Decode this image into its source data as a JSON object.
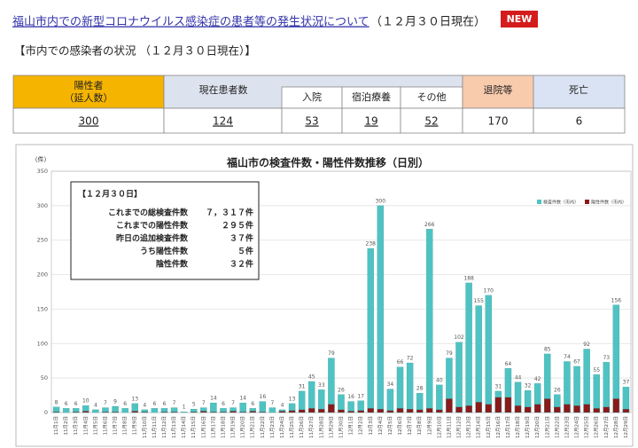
{
  "header": {
    "title": "福山市内での新型コロナウイルス感染症の患者等の発生状況について",
    "date": "（１２月３０日現在）",
    "badge": "NEW"
  },
  "subtitle": "【市内での感染者の状況 （１２月３０日現在）】",
  "table": {
    "headers": [
      "陽性者",
      "現在患者数",
      "退院等",
      "死亡"
    ],
    "positive_note": "（延人数）",
    "subheaders": [
      "入院",
      "宿泊療養",
      "その他"
    ],
    "values": [
      300,
      124,
      53,
      19,
      52,
      170,
      6
    ]
  },
  "chart_data": {
    "type": "bar",
    "title": "福山市の検査件数・陽性件数推移（日別）",
    "y_label": "（件）",
    "categories": [
      "11月1日",
      "11月2日",
      "11月3日",
      "11月4日",
      "11月5日",
      "11月6日",
      "11月7日",
      "11月8日",
      "11月9日",
      "11月10日",
      "11月11日",
      "11月12日",
      "11月13日",
      "11月14日",
      "11月15日",
      "11月16日",
      "11月17日",
      "11月18日",
      "11月19日",
      "11月20日",
      "11月21日",
      "11月22日",
      "11月23日",
      "11月24日",
      "11月25日",
      "11月26日",
      "11月27日",
      "11月28日",
      "11月29日",
      "11月30日",
      "12月1日",
      "12月2日",
      "12月3日",
      "12月4日",
      "12月5日",
      "12月6日",
      "12月7日",
      "12月8日",
      "12月9日",
      "12月10日",
      "12月11日",
      "12月12日",
      "12月13日",
      "12月14日",
      "12月15日",
      "12月16日",
      "12月17日",
      "12月18日",
      "12月19日",
      "12月20日",
      "12月21日",
      "12月22日",
      "12月23日",
      "12月24日",
      "12月25日",
      "12月26日",
      "12月27日",
      "12月28日",
      "12月29日"
    ],
    "series": [
      {
        "name": "検査件数（市内）",
        "color": "#4fc3c3",
        "values": [
          8,
          6,
          6,
          10,
          4,
          7,
          9,
          6,
          13,
          4,
          6,
          6,
          7,
          1,
          5,
          7,
          14,
          6,
          7,
          14,
          6,
          16,
          7,
          4,
          13,
          31,
          45,
          33,
          79,
          26,
          16,
          17,
          238,
          300,
          34,
          66,
          72,
          28,
          266,
          40,
          79,
          102,
          188,
          155,
          170,
          31,
          64,
          44,
          32,
          42,
          85,
          26,
          74,
          67,
          92,
          55,
          73,
          156,
          37
        ]
      },
      {
        "name": "陽性件数（市内）",
        "color": "#8b1a1a",
        "values": [
          1,
          0,
          1,
          2,
          0,
          1,
          1,
          0,
          2,
          1,
          0,
          1,
          1,
          0,
          1,
          2,
          1,
          1,
          2,
          1,
          2,
          1,
          0,
          2,
          3,
          4,
          6,
          5,
          12,
          4,
          2,
          3,
          6,
          5,
          3,
          6,
          5,
          4,
          6,
          4,
          20,
          8,
          10,
          15,
          12,
          22,
          22,
          10,
          8,
          12,
          20,
          8,
          12,
          10,
          12,
          6,
          8,
          20,
          5
        ]
      }
    ],
    "ylim": [
      0,
      350
    ],
    "yticks": [
      0,
      50,
      100,
      150,
      200,
      250,
      300,
      350
    ],
    "grid": true,
    "annotation": {
      "title": "【１２月３０日】",
      "lines": [
        [
          "これまでの総検査件数",
          "７，３１７件"
        ],
        [
          "これまでの陽性件数",
          "２９５件"
        ],
        [
          "昨日の追加検査件数",
          "３７件"
        ],
        [
          "うち陽性件数",
          "５件"
        ],
        [
          "陰性件数",
          "３２件"
        ]
      ]
    }
  }
}
